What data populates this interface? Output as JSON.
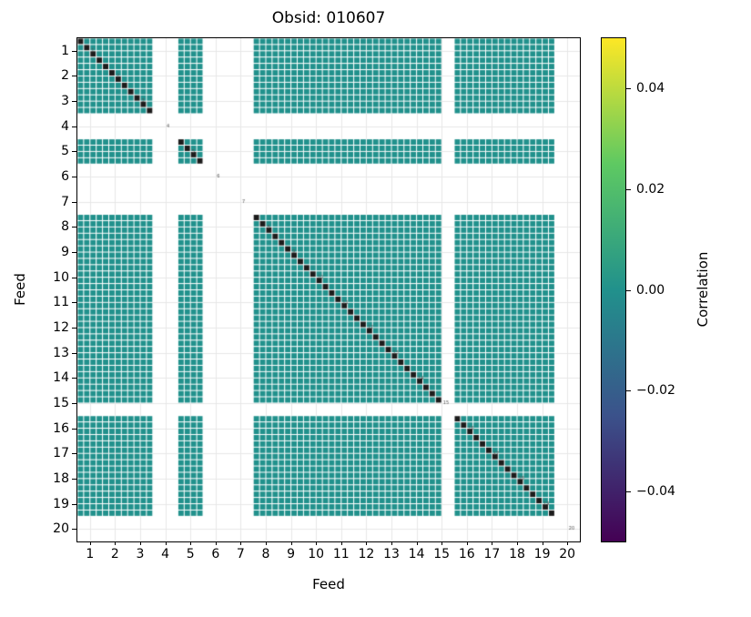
{
  "chart_data": {
    "type": "heatmap",
    "title": "Obsid: 010607",
    "xlabel": "Feed",
    "ylabel": "Feed",
    "x_ticks": [
      "1",
      "2",
      "3",
      "4",
      "5",
      "6",
      "7",
      "8",
      "9",
      "10",
      "11",
      "12",
      "13",
      "14",
      "15",
      "16",
      "17",
      "18",
      "19",
      "20"
    ],
    "y_ticks": [
      "1",
      "2",
      "3",
      "4",
      "5",
      "6",
      "7",
      "8",
      "9",
      "10",
      "11",
      "12",
      "13",
      "14",
      "15",
      "16",
      "17",
      "18",
      "19",
      "20"
    ],
    "n_feeds": 20,
    "subcells_per_feed": 4,
    "off_diagonal_value": 0.0,
    "diagonal_value": 1.0,
    "cell_color": "#21918c",
    "diagonal_color": "#1c1c1c",
    "masked_color": "#ffffff",
    "grid_color": "#e7e7e7",
    "annotation_color": "#555555",
    "masked_feeds": [
      4,
      6,
      7,
      20
    ],
    "partially_masked_feeds": {
      "15": [
        3,
        4
      ]
    },
    "colorbar": {
      "label": "Correlation",
      "tick_labels": [
        "0.04",
        "0.02",
        "0.00",
        "−0.02",
        "−0.04"
      ],
      "tick_values": [
        0.04,
        0.02,
        0.0,
        -0.02,
        -0.04
      ],
      "vmin": -0.05,
      "vmax": 0.05,
      "colormap": "viridis",
      "gradient_stops": [
        "#440154",
        "#3b528b",
        "#21918c",
        "#5ec962",
        "#fde725"
      ]
    }
  }
}
